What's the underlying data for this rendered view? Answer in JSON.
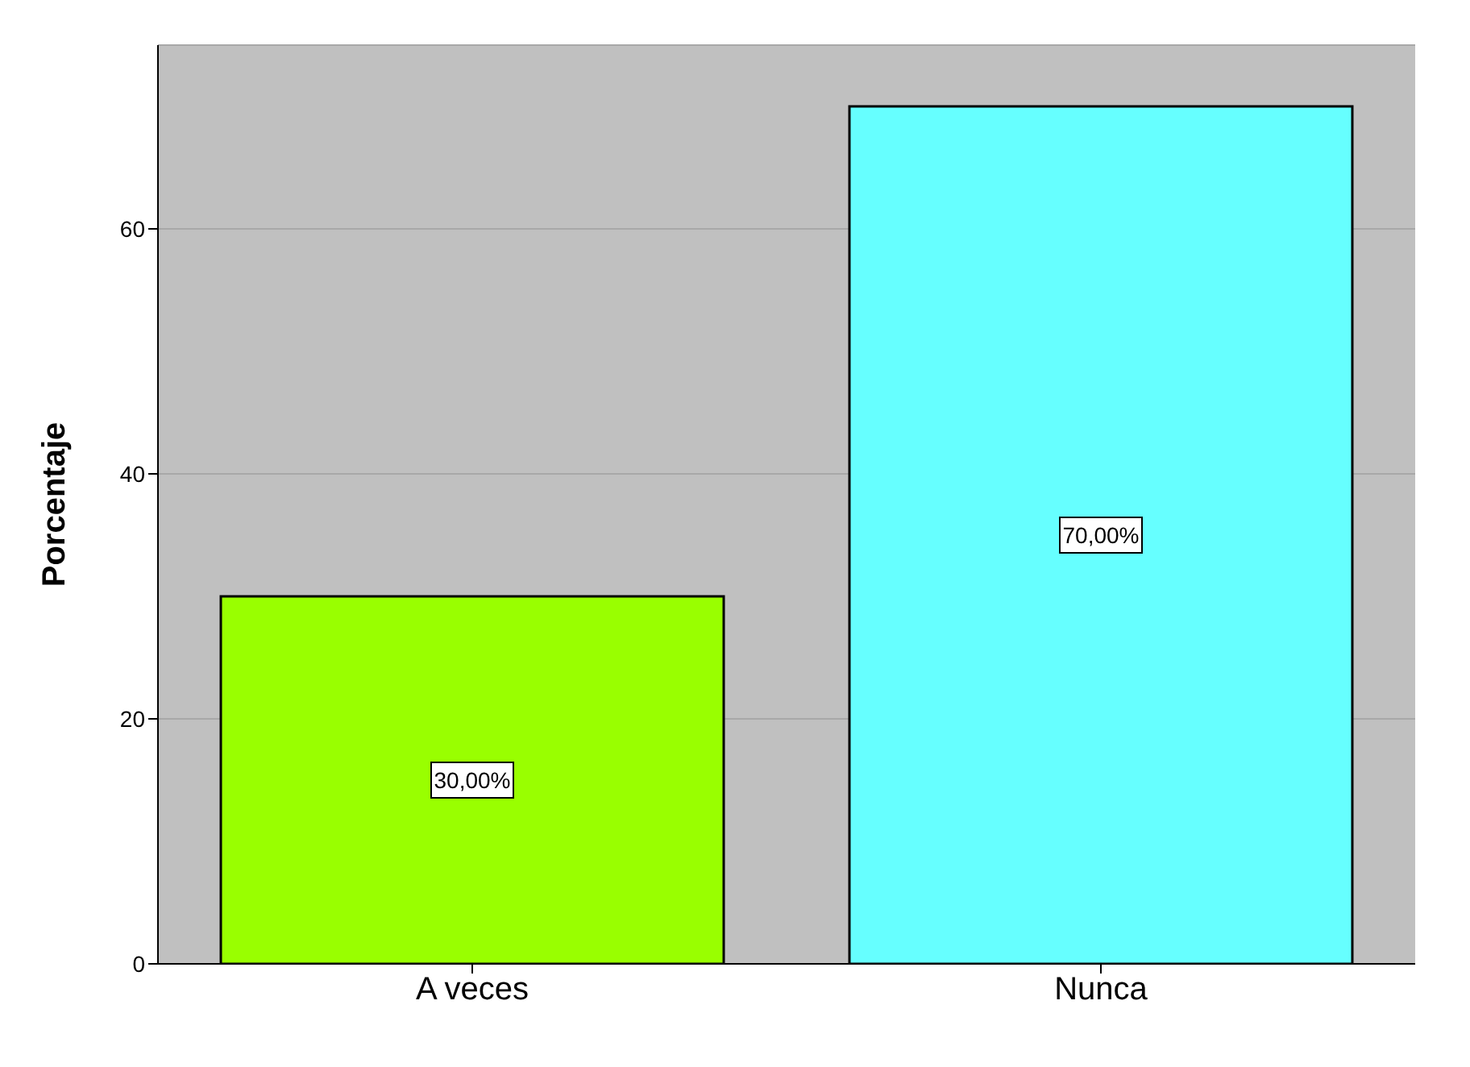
{
  "chart_data": {
    "type": "bar",
    "ylabel": "Porcentaje",
    "categories": [
      "A veces",
      "Nunca"
    ],
    "values": [
      30,
      70
    ],
    "colors": [
      "#99ff00",
      "#66ffff"
    ],
    "value_labels": [
      "30,00%",
      "70,00%"
    ],
    "ylim": [
      0,
      75
    ],
    "yticks": [
      0,
      20,
      40,
      60
    ],
    "grid": "y"
  }
}
